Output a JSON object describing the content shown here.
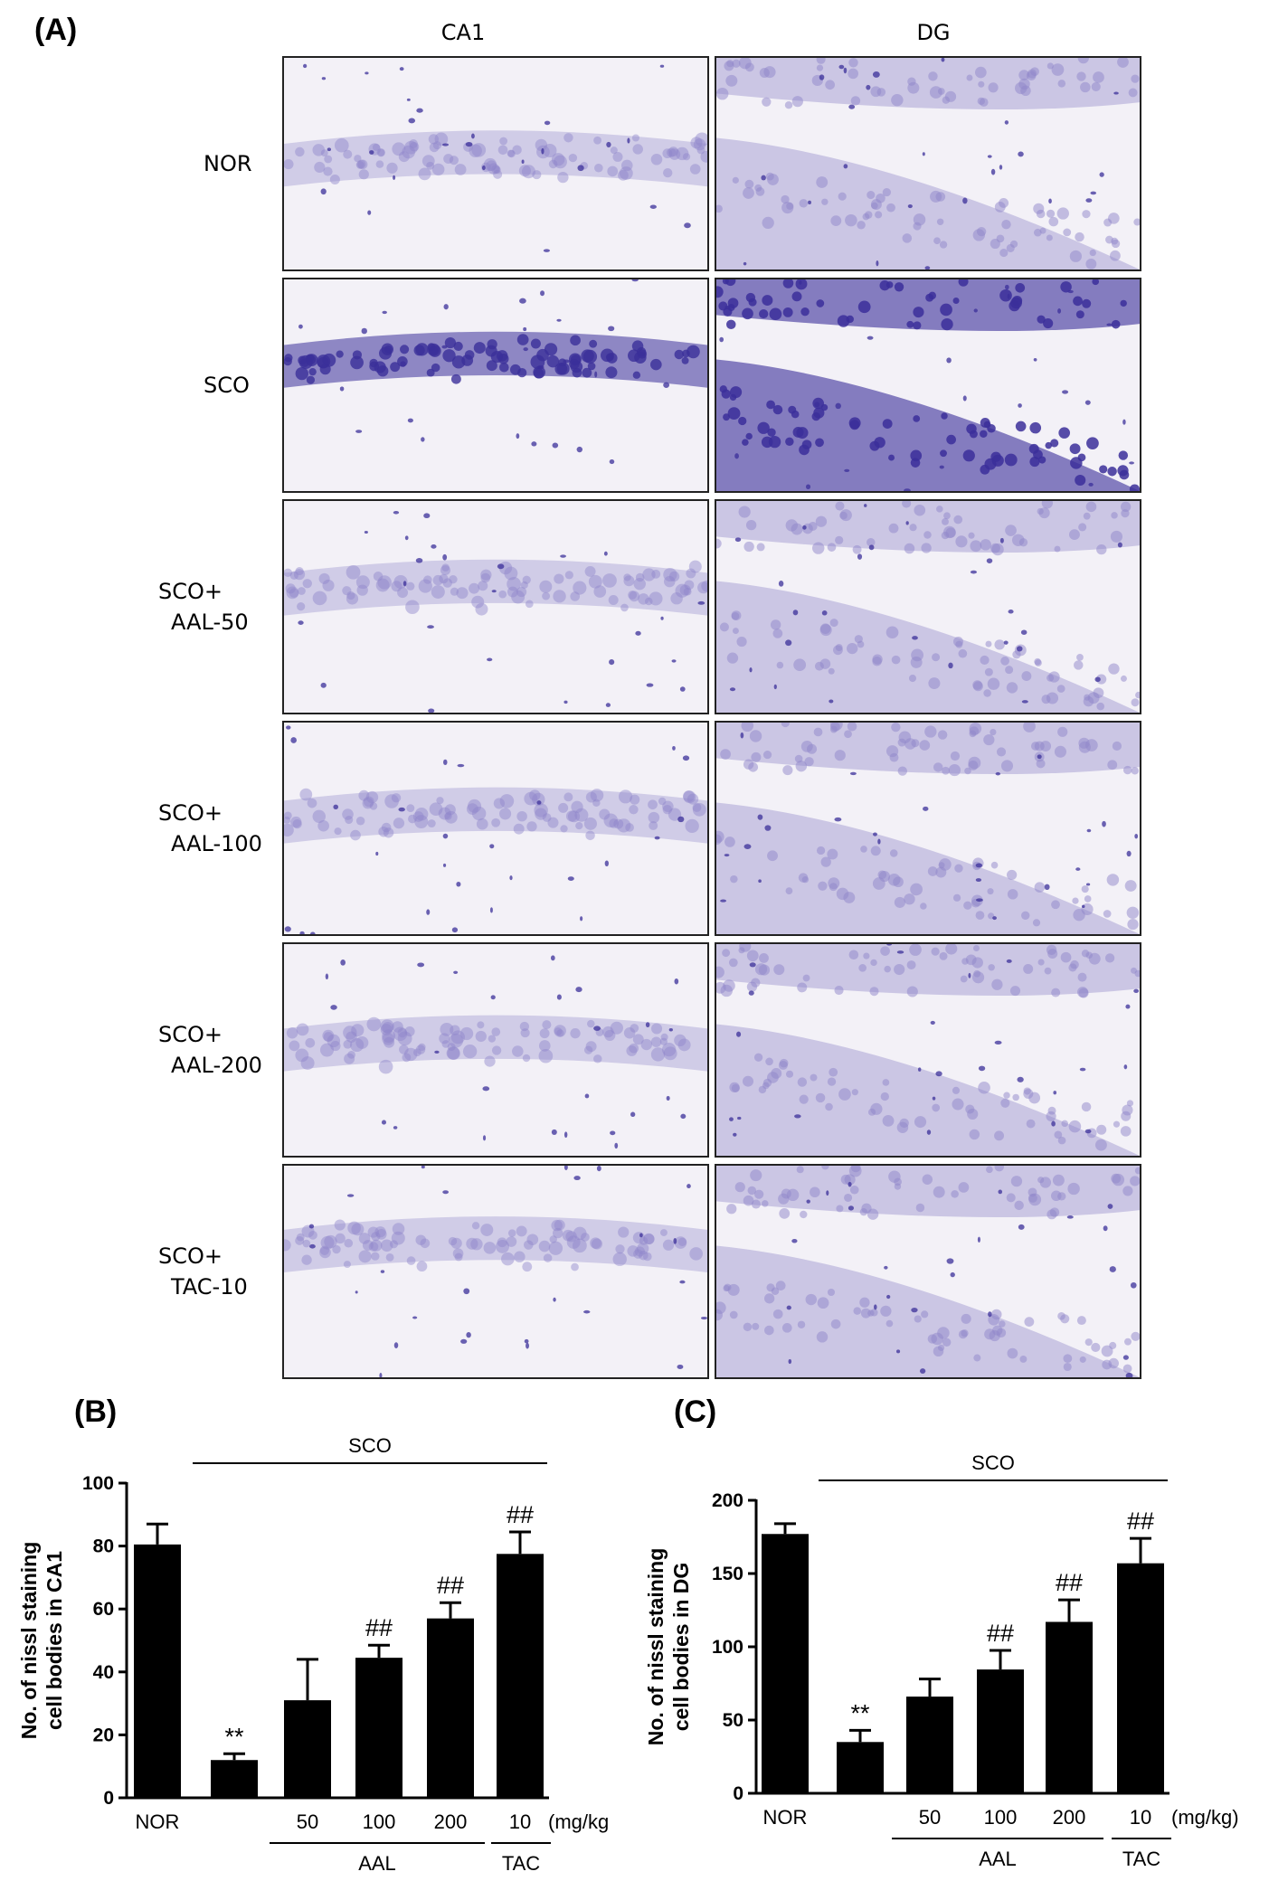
{
  "panel_a": {
    "letter": "(A)",
    "columns": [
      "CA1",
      "DG"
    ],
    "rows": [
      {
        "line1": "NOR",
        "line2": ""
      },
      {
        "line1": "SCO",
        "line2": ""
      },
      {
        "line1": "SCO+",
        "line2": "AAL-50"
      },
      {
        "line1": "SCO+",
        "line2": "AAL-100"
      },
      {
        "line1": "SCO+",
        "line2": "AAL-200"
      },
      {
        "line1": "SCO+",
        "line2": "TAC-10"
      }
    ]
  },
  "colors": {
    "bar": "#000000",
    "stain": "#8f86c9",
    "stain_dark": "#3b2f9a",
    "background": "#f3f1f7"
  },
  "chart_data": [
    {
      "panel": "(B)",
      "type": "bar",
      "ylabel_line1": "No. of nissl staining",
      "ylabel_line2": "cell bodies in CA1",
      "ylim": [
        0,
        100
      ],
      "yticks": [
        0,
        20,
        40,
        60,
        80,
        100
      ],
      "categories": [
        "NOR",
        "",
        "50",
        "100",
        "200",
        "10"
      ],
      "unit_label": "(mg/kg",
      "values": [
        80.5,
        12,
        31,
        44.5,
        57,
        77.5
      ],
      "errors": [
        6.5,
        2,
        13,
        4,
        5,
        7
      ],
      "significance": [
        "",
        "**",
        "",
        "##",
        "##",
        "##"
      ],
      "group_line_label": "SCO",
      "group_labels": [
        "AAL",
        "TAC"
      ]
    },
    {
      "panel": "(C)",
      "type": "bar",
      "ylabel_line1": "No. of nissl staining",
      "ylabel_line2": "cell bodies in DG",
      "ylim": [
        0,
        200
      ],
      "yticks": [
        0,
        50,
        100,
        150,
        200
      ],
      "categories": [
        "NOR",
        "",
        "50",
        "100",
        "200",
        "10"
      ],
      "unit_label": "(mg/kg)",
      "values": [
        177,
        35,
        66,
        84.5,
        117,
        157
      ],
      "errors": [
        7,
        8,
        12,
        13,
        15,
        17
      ],
      "significance": [
        "",
        "**",
        "",
        "##",
        "##",
        "##"
      ],
      "group_line_label": "SCO",
      "group_labels": [
        "AAL",
        "TAC"
      ]
    }
  ]
}
